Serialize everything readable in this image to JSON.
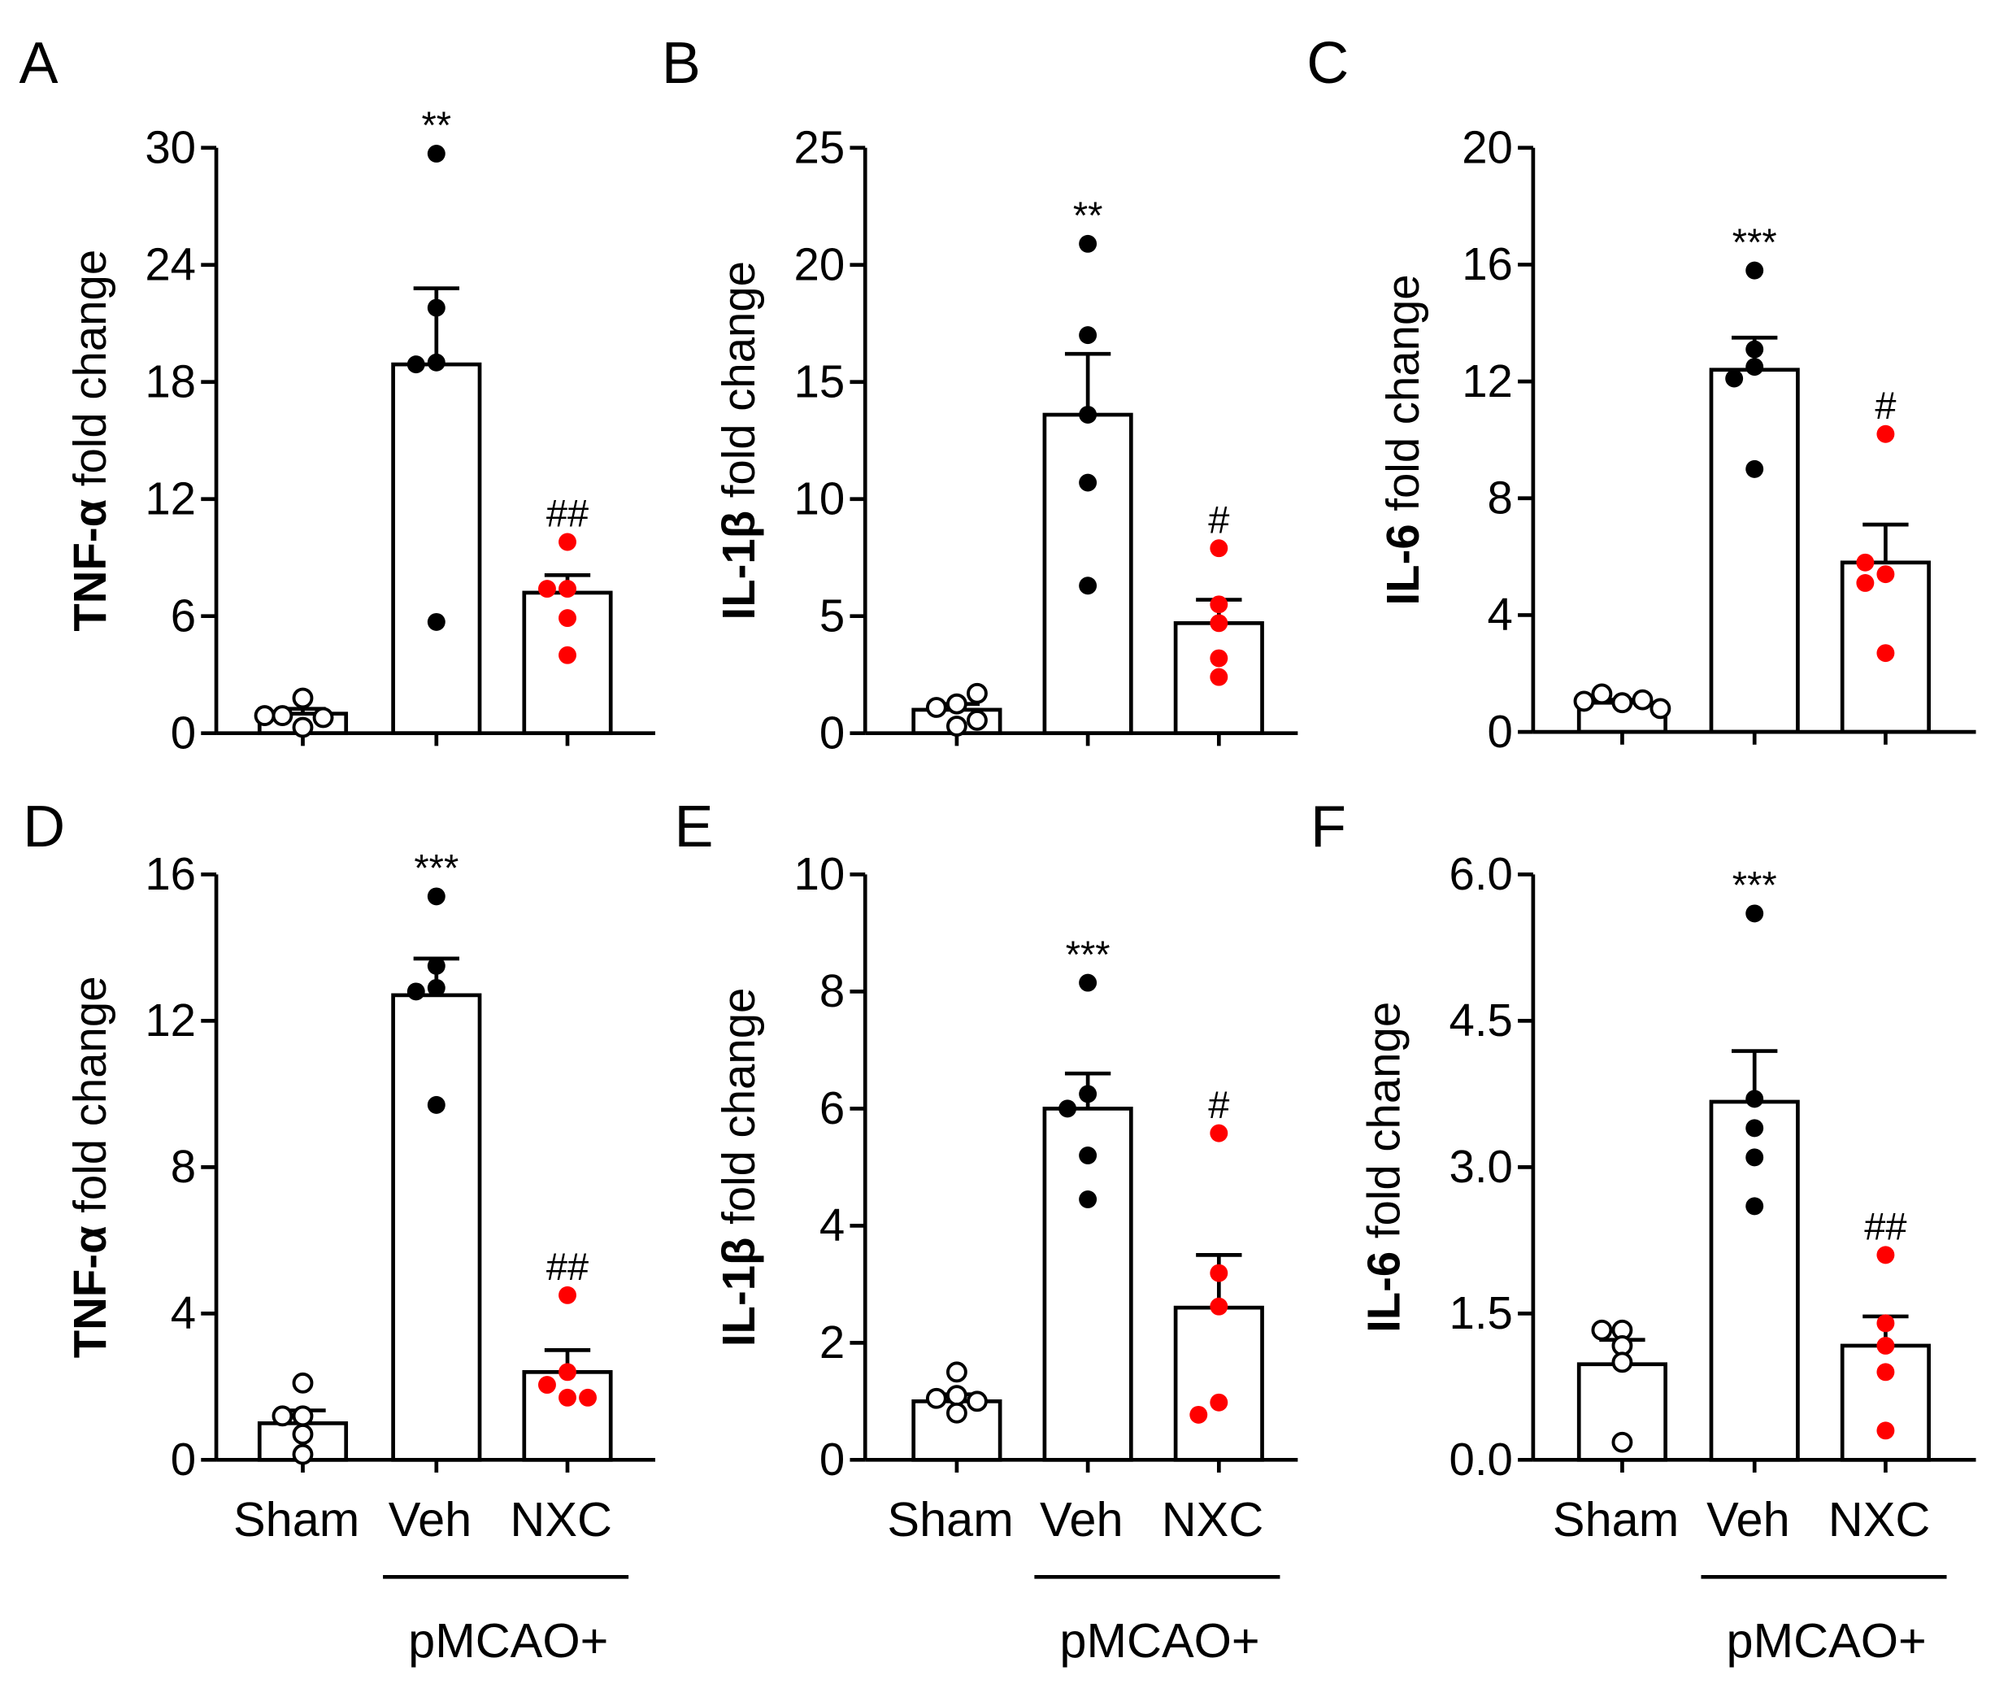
{
  "chart_data": [
    {
      "panel": "A",
      "type": "bar",
      "ylabel_bold": "TNF-α",
      "ylabel_rest": " fold change",
      "ylim": [
        0,
        30
      ],
      "yticks": [
        "0",
        "6",
        "12",
        "18",
        "24",
        "30"
      ],
      "groups": [
        {
          "name": "Sham",
          "mean": 1.0,
          "sem": 0.25,
          "points": [
            1.8,
            0.3,
            0.9,
            0.8,
            0.9
          ],
          "fill": "open",
          "annotation": ""
        },
        {
          "name": "Veh",
          "mean": 18.9,
          "sem": 3.9,
          "points": [
            29.7,
            21.8,
            19.0,
            18.9,
            5.7
          ],
          "fill": "#000000",
          "annotation": "**"
        },
        {
          "name": "NXC",
          "mean": 7.2,
          "sem": 0.9,
          "points": [
            9.8,
            7.4,
            7.4,
            5.9,
            4.0
          ],
          "fill": "#ff0000",
          "annotation": "##"
        }
      ]
    },
    {
      "panel": "B",
      "type": "bar",
      "ylabel_bold": "IL-1β",
      "ylabel_rest": " fold change",
      "ylim": [
        0,
        25
      ],
      "yticks": [
        "0",
        "5",
        "10",
        "15",
        "20",
        "25"
      ],
      "groups": [
        {
          "name": "Sham",
          "mean": 1.0,
          "sem": 0.25,
          "points": [
            1.25,
            0.3,
            1.1,
            1.7,
            0.55
          ],
          "fill": "open",
          "annotation": ""
        },
        {
          "name": "Veh",
          "mean": 13.6,
          "sem": 2.6,
          "points": [
            20.9,
            17.0,
            13.6,
            10.7,
            6.3
          ],
          "fill": "#000000",
          "annotation": "**"
        },
        {
          "name": "NXC",
          "mean": 4.7,
          "sem": 1.0,
          "points": [
            7.9,
            5.5,
            4.7,
            3.2,
            2.4
          ],
          "fill": "#ff0000",
          "annotation": "#"
        }
      ]
    },
    {
      "panel": "C",
      "type": "bar",
      "ylabel_bold": "IL-6",
      "ylabel_rest": " fold change",
      "ylim": [
        0,
        20
      ],
      "yticks": [
        "0",
        "4",
        "8",
        "12",
        "16",
        "20"
      ],
      "groups": [
        {
          "name": "Sham",
          "mean": 1.0,
          "sem": 0.1,
          "points": [
            1.0,
            1.3,
            1.1,
            1.05,
            0.8
          ],
          "fill": "open",
          "annotation": ""
        },
        {
          "name": "Veh",
          "mean": 12.4,
          "sem": 1.1,
          "points": [
            15.8,
            13.1,
            12.5,
            12.1,
            9.0
          ],
          "fill": "#000000",
          "annotation": "***"
        },
        {
          "name": "NXC",
          "mean": 5.8,
          "sem": 1.3,
          "points": [
            10.2,
            5.4,
            5.8,
            5.1,
            2.7
          ],
          "fill": "#ff0000",
          "annotation": "#"
        }
      ]
    },
    {
      "panel": "D",
      "type": "bar",
      "ylabel_bold": "TNF-α",
      "ylabel_rest": " fold change",
      "ylim": [
        0,
        16
      ],
      "yticks": [
        "0",
        "4",
        "8",
        "12",
        "16"
      ],
      "xlabels": [
        "Sham",
        "Veh",
        "NXC"
      ],
      "group_label": "pMCAO+",
      "groups": [
        {
          "name": "Sham",
          "mean": 1.0,
          "sem": 0.35,
          "points": [
            2.1,
            1.2,
            1.2,
            0.7,
            0.15
          ],
          "fill": "open",
          "annotation": ""
        },
        {
          "name": "Veh",
          "mean": 12.7,
          "sem": 1.0,
          "points": [
            15.4,
            13.5,
            12.9,
            12.8,
            9.7
          ],
          "fill": "#000000",
          "annotation": "***"
        },
        {
          "name": "NXC",
          "mean": 2.4,
          "sem": 0.6,
          "points": [
            4.5,
            2.4,
            1.7,
            2.05,
            1.7
          ],
          "fill": "#ff0000",
          "annotation": "##"
        }
      ]
    },
    {
      "panel": "E",
      "type": "bar",
      "ylabel_bold": "IL-1β",
      "ylabel_rest": " fold change",
      "ylim": [
        0,
        10
      ],
      "yticks": [
        "0",
        "2",
        "4",
        "6",
        "8",
        "10"
      ],
      "xlabels": [
        "Sham",
        "Veh",
        "NXC"
      ],
      "group_label": "pMCAO+",
      "groups": [
        {
          "name": "Sham",
          "mean": 1.0,
          "sem": 0.12,
          "points": [
            1.5,
            1.1,
            1.05,
            1.0,
            0.8
          ],
          "fill": "open",
          "annotation": ""
        },
        {
          "name": "Veh",
          "mean": 6.0,
          "sem": 0.6,
          "points": [
            8.15,
            6.25,
            6.0,
            5.2,
            4.45
          ],
          "fill": "#000000",
          "annotation": "***"
        },
        {
          "name": "NXC",
          "mean": 2.6,
          "sem": 0.9,
          "points": [
            5.58,
            3.19,
            2.62,
            0.98,
            0.77
          ],
          "fill": "#ff0000",
          "annotation": "#"
        }
      ]
    },
    {
      "panel": "F",
      "type": "bar",
      "ylabel_bold": "IL-6",
      "ylabel_rest": " fold change",
      "ylim": [
        0,
        6
      ],
      "yticks": [
        "0.0",
        "1.5",
        "3.0",
        "4.5",
        "6.0"
      ],
      "xlabels": [
        "Sham",
        "Veh",
        "NXC"
      ],
      "group_label": "pMCAO+",
      "groups": [
        {
          "name": "Sham",
          "mean": 0.98,
          "sem": 0.25,
          "points": [
            1.33,
            1.33,
            1.17,
            1.0,
            0.18
          ],
          "fill": "open",
          "annotation": ""
        },
        {
          "name": "Veh",
          "mean": 3.67,
          "sem": 0.52,
          "points": [
            5.6,
            3.7,
            3.4,
            3.1,
            2.6
          ],
          "fill": "#000000",
          "annotation": "***"
        },
        {
          "name": "NXC",
          "mean": 1.17,
          "sem": 0.3,
          "points": [
            2.1,
            1.4,
            1.17,
            0.9,
            0.3
          ],
          "fill": "#ff0000",
          "annotation": "##"
        }
      ]
    }
  ]
}
